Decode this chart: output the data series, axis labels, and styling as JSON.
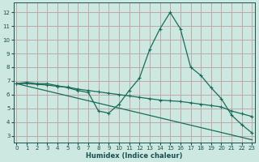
{
  "xlabel": "Humidex (Indice chaleur)",
  "bg_color": "#cce8e0",
  "grid_color": "#c0a8a8",
  "line_color": "#1a6b5a",
  "text_color": "#1a5050",
  "x_ticks": [
    0,
    1,
    2,
    3,
    4,
    5,
    6,
    7,
    8,
    9,
    10,
    11,
    12,
    13,
    14,
    15,
    16,
    17,
    18,
    19,
    20,
    21,
    22,
    23
  ],
  "y_ticks": [
    3,
    4,
    5,
    6,
    7,
    8,
    9,
    10,
    11,
    12
  ],
  "xlim": [
    -0.3,
    23.3
  ],
  "ylim": [
    2.5,
    12.7
  ],
  "series1_x": [
    0,
    1,
    2,
    3,
    4,
    5,
    6,
    7,
    8,
    9,
    10,
    11,
    12,
    13,
    14,
    15,
    16,
    17,
    18,
    19,
    20,
    21,
    22,
    23
  ],
  "series1_y": [
    6.8,
    6.9,
    6.8,
    6.8,
    6.65,
    6.5,
    6.3,
    6.15,
    4.8,
    4.65,
    5.3,
    6.3,
    7.2,
    9.3,
    10.8,
    12.0,
    10.8,
    8.0,
    7.4,
    6.5,
    5.7,
    4.5,
    3.8,
    3.2
  ],
  "series2_x": [
    0,
    1,
    2,
    3,
    4,
    5,
    6,
    7,
    8,
    9,
    10,
    11,
    12,
    13,
    14,
    15,
    16,
    17,
    18,
    19,
    20,
    21,
    22,
    23
  ],
  "series2_y": [
    6.8,
    6.8,
    6.75,
    6.7,
    6.6,
    6.55,
    6.4,
    6.3,
    6.2,
    6.1,
    6.0,
    5.9,
    5.8,
    5.7,
    5.6,
    5.55,
    5.5,
    5.4,
    5.3,
    5.2,
    5.1,
    4.8,
    4.6,
    4.4
  ],
  "series3_x": [
    0,
    23
  ],
  "series3_y": [
    6.8,
    2.7
  ]
}
